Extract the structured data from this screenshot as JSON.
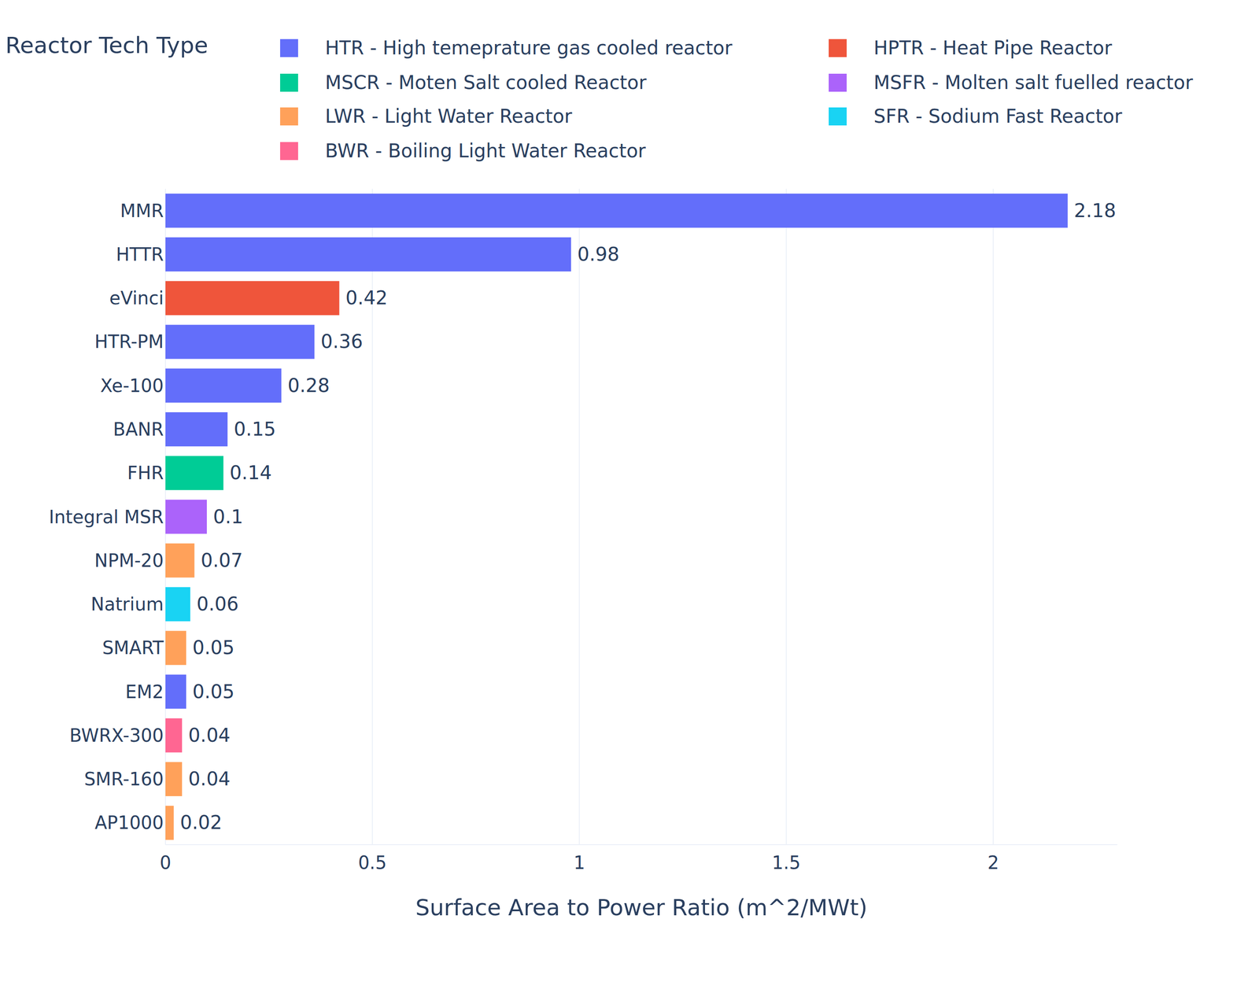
{
  "chart_data": {
    "type": "bar",
    "orientation": "horizontal",
    "x_label": "Surface Area to Power Ratio (m^2/MWt)",
    "legend_title": "Reactor Tech Type",
    "legend": "top",
    "grid": true,
    "data_labels": true,
    "xlim": [
      0,
      2.3
    ],
    "xticks": [
      0,
      0.5,
      1,
      1.5,
      2
    ],
    "categories": [
      "MMR",
      "HTTR",
      "eVinci",
      "HTR-PM",
      "Xe-100",
      "BANR",
      "FHR",
      "Integral MSR",
      "NPM-20",
      "Natrium",
      "SMART",
      "EM2",
      "BWRX-300",
      "SMR-160",
      "AP1000"
    ],
    "series": [
      {
        "name": "HTR - High temeprature gas cooled reactor",
        "color": "#636efa",
        "values": [
          2.18,
          0.98,
          null,
          0.36,
          0.28,
          0.15,
          null,
          null,
          null,
          null,
          null,
          0.05,
          null,
          null,
          null
        ]
      },
      {
        "name": "HPTR - Heat Pipe Reactor",
        "color": "#ef553b",
        "values": [
          null,
          null,
          0.42,
          null,
          null,
          null,
          null,
          null,
          null,
          null,
          null,
          null,
          null,
          null,
          null
        ]
      },
      {
        "name": "MSCR - Moten Salt cooled Reactor",
        "color": "#00cc96",
        "values": [
          null,
          null,
          null,
          null,
          null,
          null,
          0.14,
          null,
          null,
          null,
          null,
          null,
          null,
          null,
          null
        ]
      },
      {
        "name": "MSFR - Molten salt fuelled reactor",
        "color": "#ab63fa",
        "values": [
          null,
          null,
          null,
          null,
          null,
          null,
          null,
          0.1,
          null,
          null,
          null,
          null,
          null,
          null,
          null
        ]
      },
      {
        "name": "LWR - Light Water Reactor",
        "color": "#ffa15a",
        "values": [
          null,
          null,
          null,
          null,
          null,
          null,
          null,
          null,
          0.07,
          null,
          0.05,
          null,
          null,
          0.04,
          0.02
        ]
      },
      {
        "name": "SFR - Sodium Fast Reactor",
        "color": "#19d3f3",
        "values": [
          null,
          null,
          null,
          null,
          null,
          null,
          null,
          null,
          null,
          0.06,
          null,
          null,
          null,
          null,
          null
        ]
      },
      {
        "name": "BWR - Boiling Light Water Reactor",
        "color": "#ff6692",
        "values": [
          null,
          null,
          null,
          null,
          null,
          null,
          null,
          null,
          null,
          null,
          null,
          null,
          0.04,
          null,
          null
        ]
      }
    ]
  }
}
